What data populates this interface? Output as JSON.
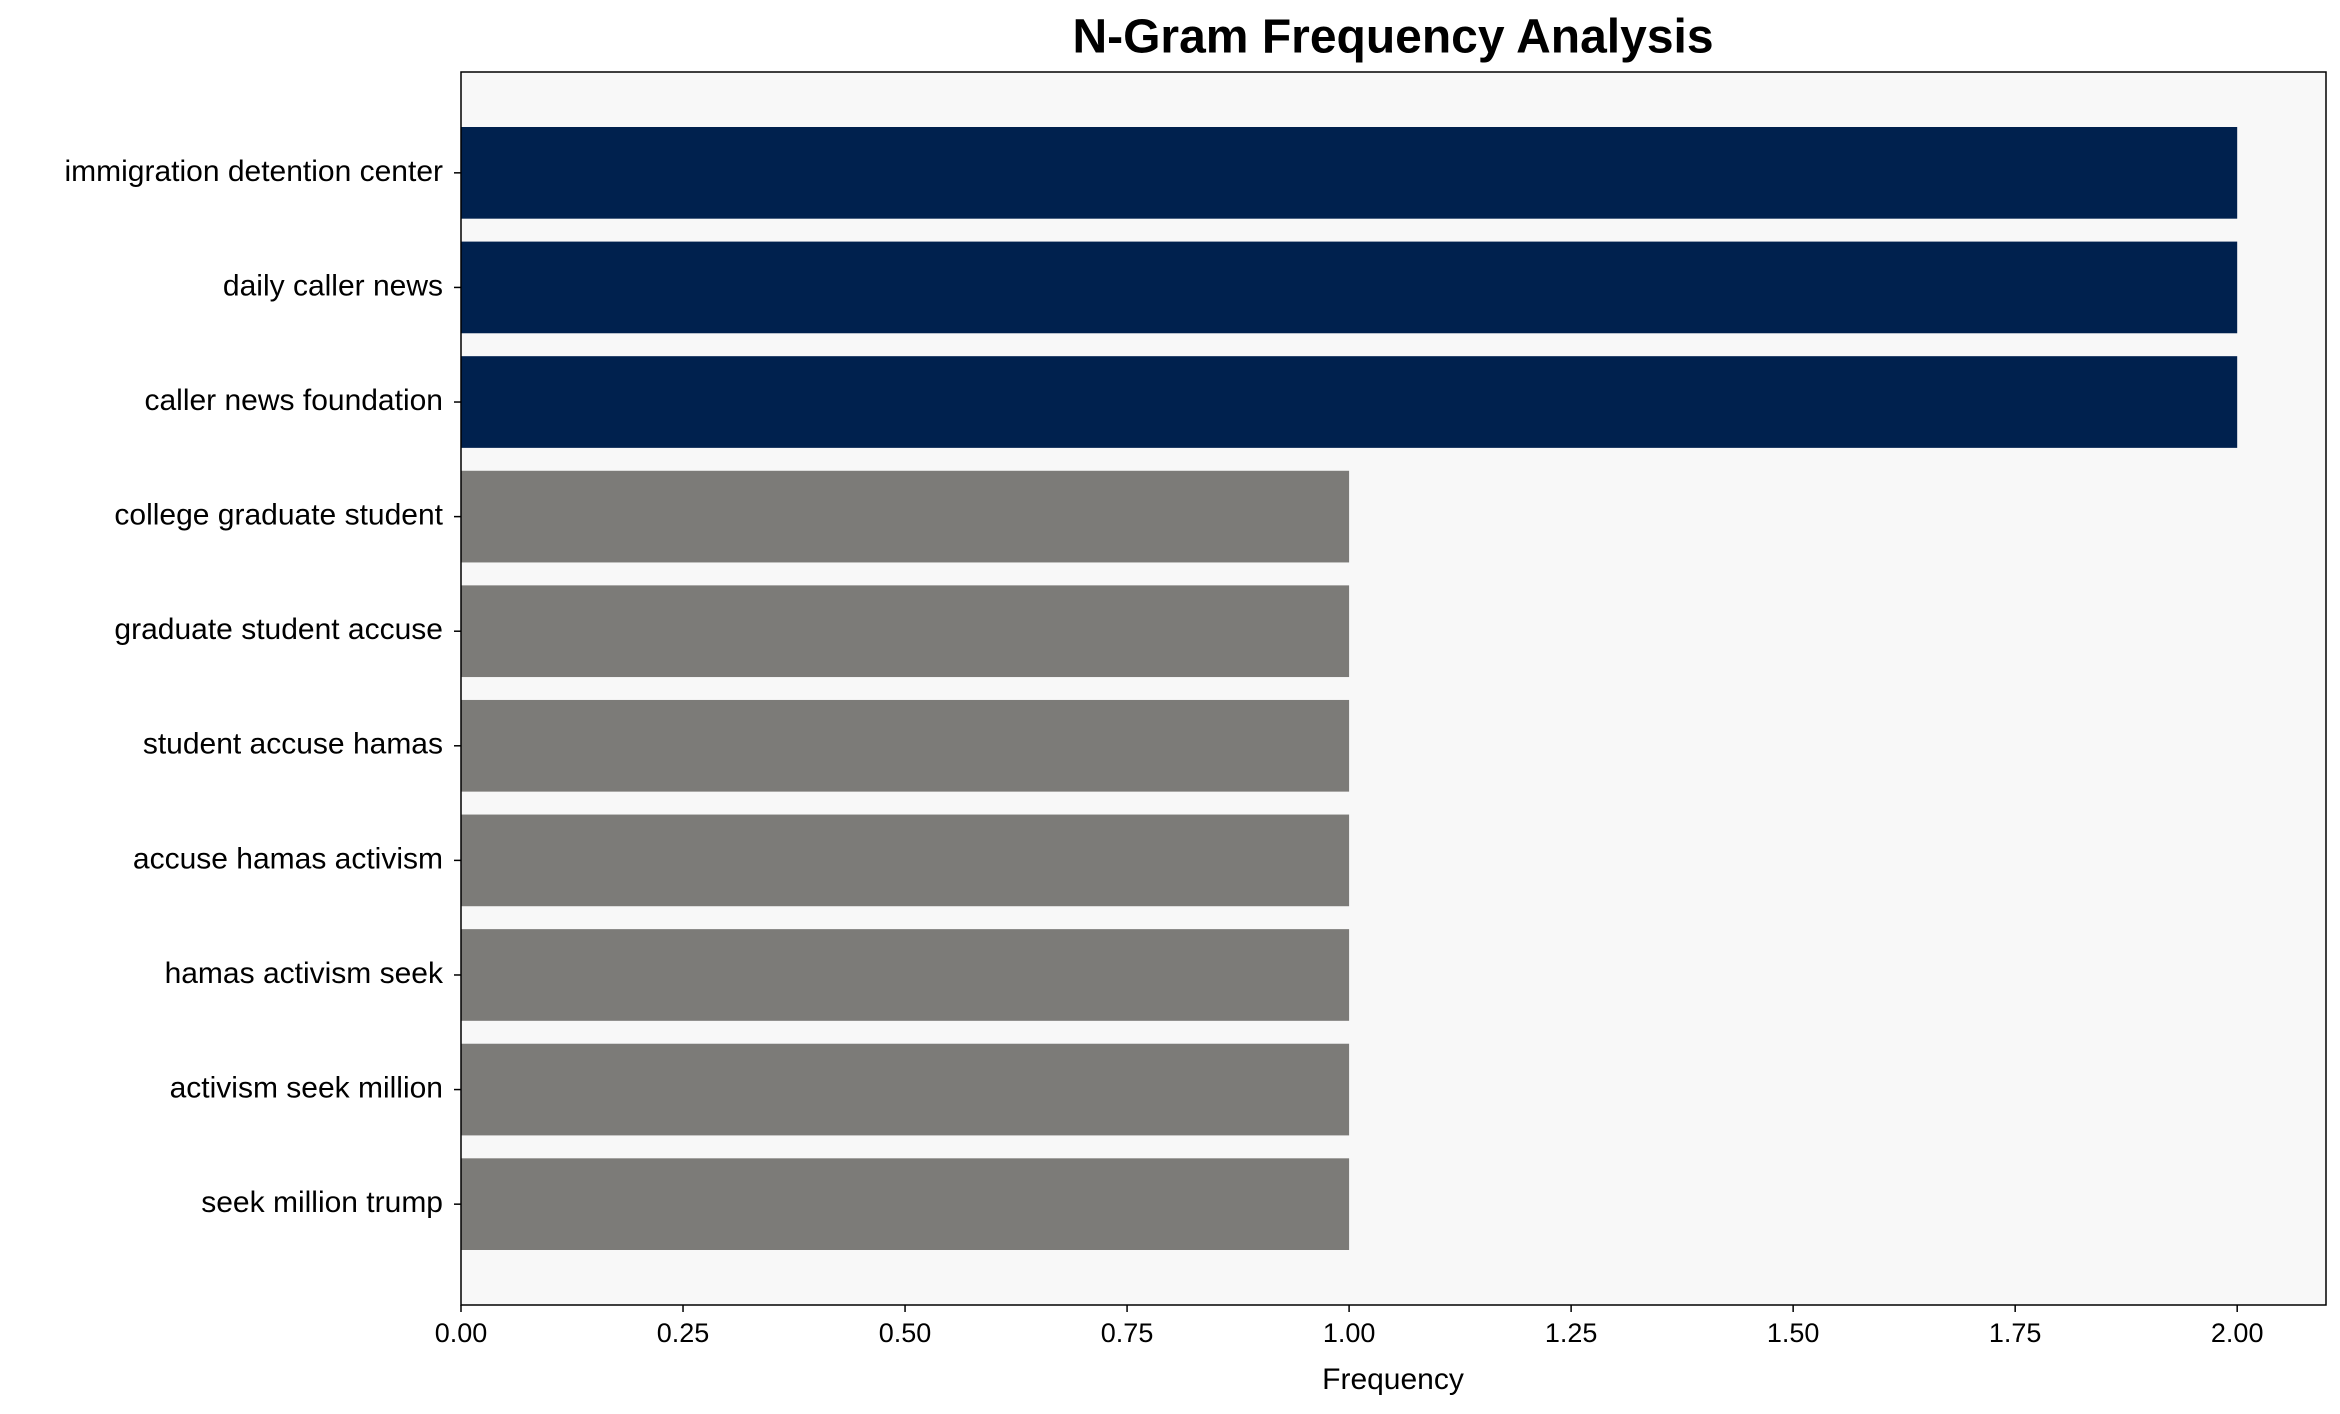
{
  "chart_data": {
    "type": "bar",
    "orientation": "horizontal",
    "title": "N-Gram Frequency Analysis",
    "xlabel": "Frequency",
    "categories": [
      "immigration detention center",
      "daily caller news",
      "caller news foundation",
      "college graduate student",
      "graduate student accuse",
      "student accuse hamas",
      "accuse hamas activism",
      "hamas activism seek",
      "activism seek million",
      "seek million trump"
    ],
    "values": [
      2,
      2,
      2,
      1,
      1,
      1,
      1,
      1,
      1,
      1
    ],
    "colors": [
      "#00214e",
      "#00214e",
      "#00214e",
      "#7c7b78",
      "#7c7b78",
      "#7c7b78",
      "#7c7b78",
      "#7c7b78",
      "#7c7b78",
      "#7c7b78"
    ],
    "xlim": [
      0,
      2.1
    ],
    "xticks": [
      {
        "value": 0,
        "label": "0.00"
      },
      {
        "value": 0.25,
        "label": "0.25"
      },
      {
        "value": 0.5,
        "label": "0.50"
      },
      {
        "value": 0.75,
        "label": "0.75"
      },
      {
        "value": 1,
        "label": "1.00"
      },
      {
        "value": 1.25,
        "label": "1.25"
      },
      {
        "value": 1.5,
        "label": "1.50"
      },
      {
        "value": 1.75,
        "label": "1.75"
      },
      {
        "value": 2,
        "label": "2.00"
      }
    ],
    "grid": false
  }
}
